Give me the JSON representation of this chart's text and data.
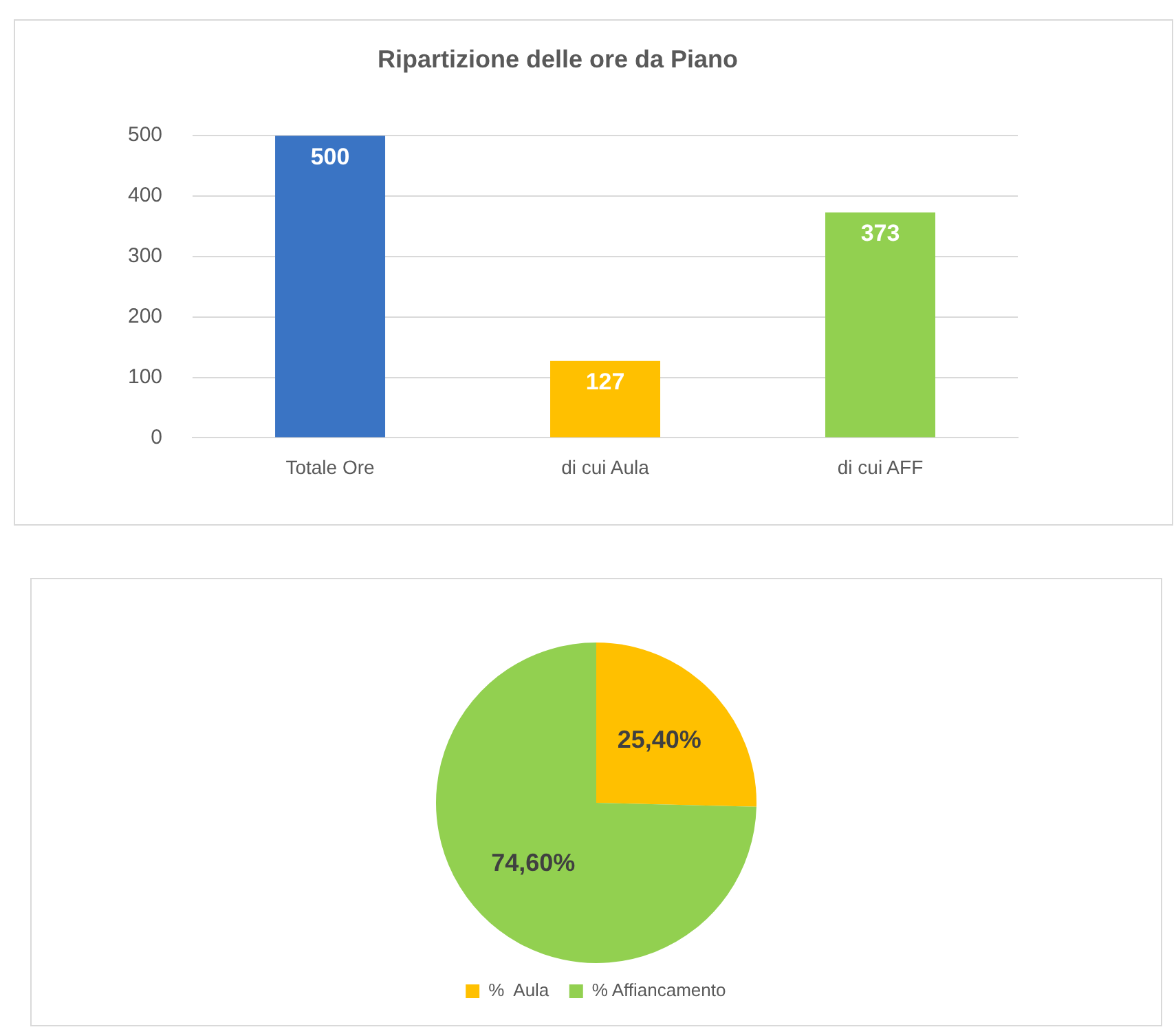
{
  "chart_data": [
    {
      "type": "bar",
      "title": "Ripartizione delle ore da Piano",
      "categories": [
        "Totale Ore",
        "di cui Aula",
        "di cui AFF"
      ],
      "values": [
        500,
        127,
        373
      ],
      "colors": [
        "#3a74c4",
        "#ffc000",
        "#92d050"
      ],
      "ylim": [
        0,
        500
      ],
      "yticks": [
        0,
        100,
        200,
        300,
        400,
        500
      ],
      "grid": "y",
      "data_labels": true
    },
    {
      "type": "pie",
      "categories": [
        "%  Aula",
        "% Affiancamento"
      ],
      "values": [
        25.4,
        74.6
      ],
      "colors": [
        "#ffc000",
        "#92d050"
      ],
      "value_labels": [
        "25,40%",
        "74,60%"
      ],
      "legend": "bottom"
    }
  ]
}
